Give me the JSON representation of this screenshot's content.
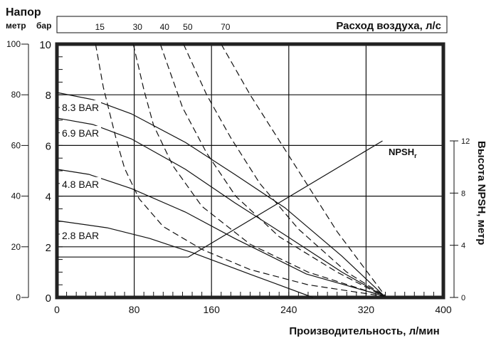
{
  "chart_data": {
    "type": "line",
    "ylabel_title": "Напор",
    "ylabel_meters": "метр",
    "ylabel_bar": "бар",
    "xlabel": "Производительность, л/мин",
    "top_label": "Расход воздуха, л/с",
    "right_label": "Высота NPSH, метр",
    "npsh_label": "NPSH",
    "npsh_sub": "r",
    "xlim": [
      0,
      400
    ],
    "ylim_bar": [
      0,
      10
    ],
    "ylim_meter": [
      0,
      100
    ],
    "ylim_npsh": [
      0,
      12
    ],
    "x_ticks": [
      "0",
      "80",
      "160",
      "240",
      "320",
      "400"
    ],
    "bar_ticks": [
      "0",
      "2",
      "4",
      "6",
      "8",
      "10"
    ],
    "meter_ticks": [
      "0",
      "20",
      "40",
      "60",
      "80",
      "100"
    ],
    "npsh_ticks": [
      "0",
      "4",
      "8",
      "12"
    ],
    "grid": true,
    "pressure_curves": [
      {
        "name": "8.3 BAR",
        "points": [
          [
            0,
            8.09
          ],
          [
            37,
            7.81
          ],
          [
            77,
            7.25
          ],
          [
            133,
            6.12
          ],
          [
            184,
            4.86
          ],
          [
            236,
            3.54
          ],
          [
            295,
            1.63
          ],
          [
            339,
            0.05
          ]
        ]
      },
      {
        "name": "6.9 BAR",
        "points": [
          [
            0,
            7.08
          ],
          [
            37,
            6.83
          ],
          [
            77,
            6.26
          ],
          [
            133,
            5.06
          ],
          [
            184,
            3.74
          ],
          [
            236,
            2.47
          ],
          [
            295,
            1.0
          ],
          [
            339,
            0.05
          ]
        ]
      },
      {
        "name": "4.8 BAR",
        "points": [
          [
            0,
            5.06
          ],
          [
            33,
            4.86
          ],
          [
            77,
            4.3
          ],
          [
            133,
            3.37
          ],
          [
            184,
            2.33
          ],
          [
            258,
            0.93
          ],
          [
            339,
            0.05
          ]
        ]
      },
      {
        "name": "2.8 BAR",
        "points": [
          [
            0,
            3.03
          ],
          [
            52,
            2.75
          ],
          [
            96,
            2.33
          ],
          [
            140,
            1.77
          ],
          [
            199,
            0.93
          ],
          [
            265,
            0
          ]
        ]
      }
    ],
    "air_curves": [
      {
        "name": "15",
        "points": [
          [
            40,
            10
          ],
          [
            48,
            8.3
          ],
          [
            61,
            6.3
          ],
          [
            70,
            5.1
          ],
          [
            85,
            3.9
          ],
          [
            110,
            2.8
          ],
          [
            150,
            1.9
          ],
          [
            200,
            1.1
          ],
          [
            260,
            0.5
          ],
          [
            338,
            0.05
          ]
        ]
      },
      {
        "name": "30",
        "points": [
          [
            79,
            10
          ],
          [
            90,
            8.2
          ],
          [
            100,
            6.8
          ],
          [
            120,
            5.2
          ],
          [
            150,
            3.6
          ],
          [
            200,
            2.1
          ],
          [
            260,
            1.0
          ],
          [
            338,
            0.05
          ]
        ]
      },
      {
        "name": "40",
        "points": [
          [
            107,
            10
          ],
          [
            130,
            7.5
          ],
          [
            155,
            5.7
          ],
          [
            185,
            4.0
          ],
          [
            230,
            2.4
          ],
          [
            290,
            1.0
          ],
          [
            338,
            0.05
          ]
        ]
      },
      {
        "name": "50",
        "points": [
          [
            131,
            10
          ],
          [
            155,
            8
          ],
          [
            180,
            6.3
          ],
          [
            210,
            4.5
          ],
          [
            250,
            2.7
          ],
          [
            300,
            1.0
          ],
          [
            340,
            0.05
          ]
        ]
      },
      {
        "name": "70",
        "points": [
          [
            170,
            10
          ],
          [
            200,
            8
          ],
          [
            230,
            6.2
          ],
          [
            260,
            4.4
          ],
          [
            290,
            2.6
          ],
          [
            340,
            0.05
          ]
        ]
      }
    ],
    "npsh_curve": {
      "points": [
        [
          0,
          3.1
        ],
        [
          136,
          3.1
        ],
        [
          337,
          12
        ]
      ]
    }
  }
}
